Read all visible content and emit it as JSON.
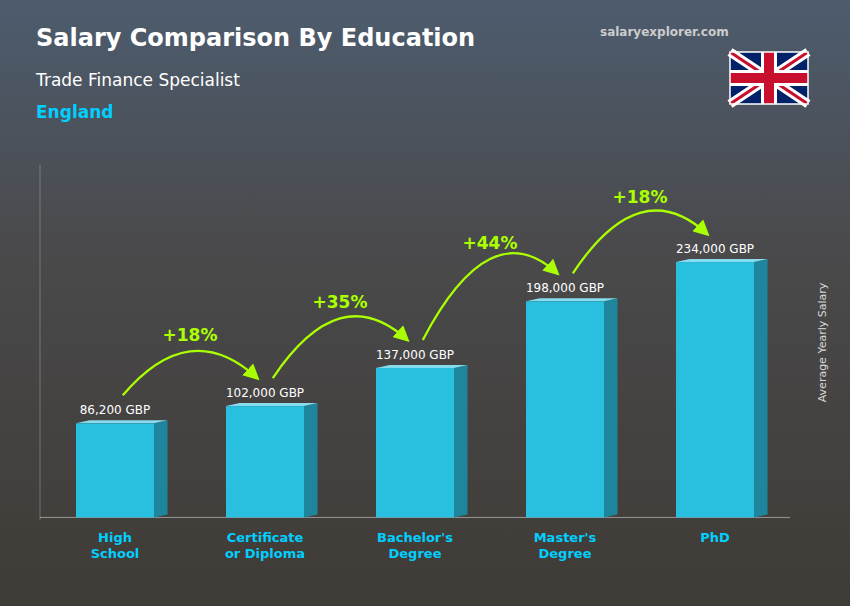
{
  "chart_data": {
    "type": "bar",
    "title": "Salary Comparison By Education",
    "subtitle": [
      "Trade Finance Specialist",
      "England"
    ],
    "source": "salaryexplorer.com",
    "ylabel": "Average Yearly Salary",
    "categories": [
      "High\nSchool",
      "Certificate\nor Diploma",
      "Bachelor's\nDegree",
      "Master's\nDegree",
      "PhD"
    ],
    "values": [
      86200,
      102000,
      137000,
      198000,
      234000
    ],
    "value_labels": [
      "86,200 GBP",
      "102,000 GBP",
      "137,000 GBP",
      "198,000 GBP",
      "234,000 GBP"
    ],
    "data_labels": true,
    "annotations": [
      "+18%",
      "+35%",
      "+44%",
      "+18%"
    ],
    "color": "#29BFDF",
    "ylim": [
      -2340,
      322920
    ],
    "tick_labels": "x",
    "grid": false
  }
}
